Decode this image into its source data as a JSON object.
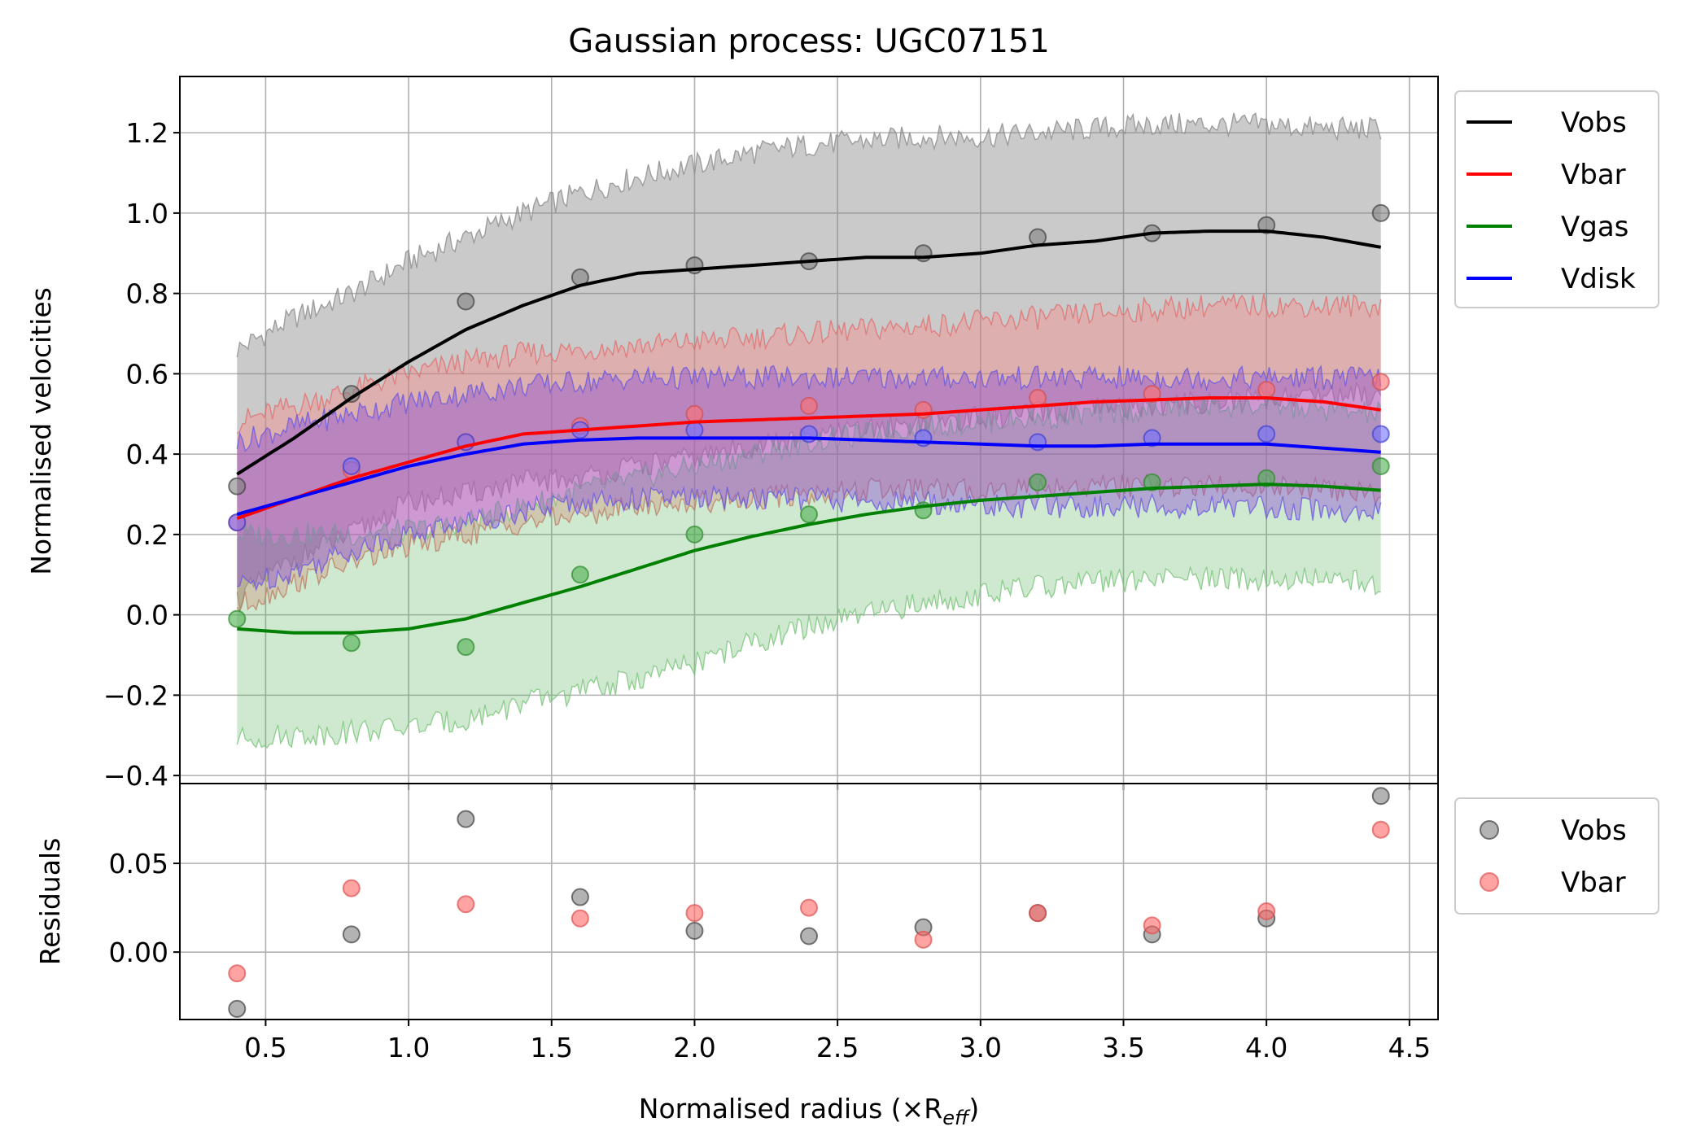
{
  "chart_data": [
    {
      "type": "line",
      "title": "Gaussian process: UGC07151",
      "xlabel": "",
      "ylabel": "Normalised velocities",
      "xlim": [
        0.2,
        4.6
      ],
      "ylim": [
        -0.42,
        1.34
      ],
      "grid": true,
      "legend_placement": "outside upper right",
      "x_ticks": [
        "0.5",
        "1.0",
        "1.5",
        "2.0",
        "2.5",
        "3.0",
        "3.5",
        "4.0",
        "4.5"
      ],
      "y_ticks": [
        "−0.4",
        "−0.2",
        "0.0",
        "0.2",
        "0.4",
        "0.6",
        "0.8",
        "1.0",
        "1.2"
      ],
      "data_x": [
        0.4,
        0.8,
        1.2,
        1.6,
        2.0,
        2.4,
        2.8,
        3.2,
        3.6,
        4.0,
        4.4
      ],
      "series": [
        {
          "name": "Vobs",
          "color": "#000000",
          "points": [
            0.32,
            0.55,
            0.78,
            0.84,
            0.87,
            0.88,
            0.9,
            0.94,
            0.95,
            0.97,
            1.0
          ],
          "curve_x": [
            0.4,
            0.6,
            0.8,
            1.0,
            1.2,
            1.4,
            1.6,
            1.8,
            2.0,
            2.2,
            2.4,
            2.6,
            2.8,
            3.0,
            3.2,
            3.4,
            3.6,
            3.8,
            4.0,
            4.2,
            4.4
          ],
          "curve_y": [
            0.35,
            0.44,
            0.54,
            0.63,
            0.71,
            0.77,
            0.82,
            0.85,
            0.86,
            0.87,
            0.88,
            0.89,
            0.89,
            0.9,
            0.92,
            0.93,
            0.95,
            0.955,
            0.955,
            0.94,
            0.915
          ],
          "band_upper": [
            0.66,
            0.74,
            0.8,
            0.88,
            0.94,
            1.0,
            1.05,
            1.09,
            1.12,
            1.15,
            1.17,
            1.18,
            1.19,
            1.19,
            1.2,
            1.21,
            1.22,
            1.22,
            1.22,
            1.21,
            1.21
          ],
          "band_lower": [
            0.04,
            0.14,
            0.2,
            0.28,
            0.3,
            0.33,
            0.34,
            0.37,
            0.39,
            0.42,
            0.44,
            0.46,
            0.48,
            0.49,
            0.5,
            0.51,
            0.52,
            0.53,
            0.54,
            0.55,
            0.55
          ]
        },
        {
          "name": "Vbar",
          "color": "#ff0000",
          "points": [
            0.23,
            0.36,
            0.43,
            0.47,
            0.5,
            0.52,
            0.51,
            0.54,
            0.55,
            0.56,
            0.58
          ],
          "curve_x": [
            0.4,
            0.6,
            0.8,
            1.0,
            1.2,
            1.4,
            1.6,
            1.8,
            2.0,
            2.2,
            2.4,
            2.6,
            2.8,
            3.0,
            3.2,
            3.4,
            3.6,
            3.8,
            4.0,
            4.2,
            4.4
          ],
          "curve_y": [
            0.24,
            0.29,
            0.34,
            0.38,
            0.42,
            0.45,
            0.46,
            0.47,
            0.48,
            0.485,
            0.49,
            0.495,
            0.5,
            0.51,
            0.52,
            0.53,
            0.535,
            0.54,
            0.54,
            0.53,
            0.51
          ],
          "band_upper": [
            0.48,
            0.52,
            0.56,
            0.6,
            0.63,
            0.65,
            0.66,
            0.67,
            0.68,
            0.69,
            0.7,
            0.71,
            0.72,
            0.73,
            0.74,
            0.75,
            0.76,
            0.77,
            0.77,
            0.77,
            0.77
          ],
          "band_lower": [
            0.02,
            0.08,
            0.13,
            0.17,
            0.2,
            0.23,
            0.25,
            0.27,
            0.28,
            0.29,
            0.3,
            0.31,
            0.31,
            0.31,
            0.32,
            0.32,
            0.32,
            0.32,
            0.32,
            0.31,
            0.3
          ]
        },
        {
          "name": "Vgas",
          "color": "#008000",
          "points": [
            -0.01,
            -0.07,
            -0.08,
            0.1,
            0.2,
            0.25,
            0.26,
            0.33,
            0.33,
            0.34,
            0.37
          ],
          "curve_x": [
            0.4,
            0.6,
            0.8,
            1.0,
            1.2,
            1.4,
            1.6,
            1.8,
            2.0,
            2.2,
            2.4,
            2.6,
            2.8,
            3.0,
            3.2,
            3.4,
            3.6,
            3.8,
            4.0,
            4.2,
            4.4
          ],
          "curve_y": [
            -0.035,
            -0.045,
            -0.045,
            -0.035,
            -0.01,
            0.03,
            0.07,
            0.115,
            0.16,
            0.195,
            0.225,
            0.25,
            0.27,
            0.285,
            0.295,
            0.305,
            0.315,
            0.32,
            0.325,
            0.32,
            0.31
          ],
          "band_upper": [
            0.2,
            0.2,
            0.2,
            0.21,
            0.23,
            0.27,
            0.31,
            0.34,
            0.37,
            0.4,
            0.43,
            0.45,
            0.47,
            0.48,
            0.49,
            0.5,
            0.51,
            0.52,
            0.52,
            0.51,
            0.5
          ],
          "band_lower": [
            -0.31,
            -0.3,
            -0.29,
            -0.28,
            -0.26,
            -0.22,
            -0.19,
            -0.16,
            -0.12,
            -0.07,
            -0.03,
            0.0,
            0.03,
            0.05,
            0.07,
            0.08,
            0.09,
            0.09,
            0.09,
            0.09,
            0.08
          ]
        },
        {
          "name": "Vdisk",
          "color": "#0000ff",
          "points": [
            0.23,
            0.37,
            0.43,
            0.46,
            0.46,
            0.45,
            0.44,
            0.43,
            0.44,
            0.45,
            0.45
          ],
          "curve_x": [
            0.4,
            0.6,
            0.8,
            1.0,
            1.2,
            1.4,
            1.6,
            1.8,
            2.0,
            2.2,
            2.4,
            2.6,
            2.8,
            3.0,
            3.2,
            3.4,
            3.6,
            3.8,
            4.0,
            4.2,
            4.4
          ],
          "curve_y": [
            0.25,
            0.29,
            0.33,
            0.37,
            0.4,
            0.425,
            0.435,
            0.44,
            0.44,
            0.44,
            0.44,
            0.435,
            0.43,
            0.425,
            0.42,
            0.42,
            0.425,
            0.425,
            0.425,
            0.415,
            0.405
          ],
          "band_upper": [
            0.43,
            0.47,
            0.5,
            0.53,
            0.55,
            0.57,
            0.58,
            0.59,
            0.59,
            0.59,
            0.59,
            0.59,
            0.59,
            0.59,
            0.59,
            0.59,
            0.59,
            0.59,
            0.59,
            0.59,
            0.59
          ],
          "band_lower": [
            0.07,
            0.11,
            0.16,
            0.2,
            0.23,
            0.26,
            0.28,
            0.29,
            0.29,
            0.29,
            0.29,
            0.28,
            0.28,
            0.27,
            0.27,
            0.27,
            0.27,
            0.27,
            0.27,
            0.26,
            0.25
          ]
        }
      ]
    },
    {
      "type": "scatter",
      "title": "",
      "xlabel": "Normalised radius (×R",
      "xlabel_sub": "eff",
      "xlabel_close": ")",
      "ylabel": "Residuals",
      "xlim": [
        0.2,
        4.6
      ],
      "ylim": [
        -0.038,
        0.095
      ],
      "grid": true,
      "legend_placement": "outside upper right",
      "x_ticks": [
        "0.5",
        "1.0",
        "1.5",
        "2.0",
        "2.5",
        "3.0",
        "3.5",
        "4.0",
        "4.5"
      ],
      "y_ticks": [
        "0.00",
        "0.05"
      ],
      "series": [
        {
          "name": "Vobs",
          "color": "#808080",
          "x": [
            0.4,
            0.8,
            1.2,
            1.6,
            2.0,
            2.4,
            2.8,
            3.2,
            3.6,
            4.0,
            4.4
          ],
          "y": [
            -0.032,
            0.01,
            0.075,
            0.031,
            0.012,
            0.009,
            0.014,
            0.022,
            0.01,
            0.019,
            0.088
          ]
        },
        {
          "name": "Vbar",
          "color": "#ff6666",
          "x": [
            0.4,
            0.8,
            1.2,
            1.6,
            2.0,
            2.4,
            2.8,
            3.2,
            3.6,
            4.0,
            4.4
          ],
          "y": [
            -0.012,
            0.036,
            0.027,
            0.019,
            0.022,
            0.025,
            0.007,
            0.022,
            0.015,
            0.023,
            0.069
          ]
        }
      ]
    }
  ]
}
